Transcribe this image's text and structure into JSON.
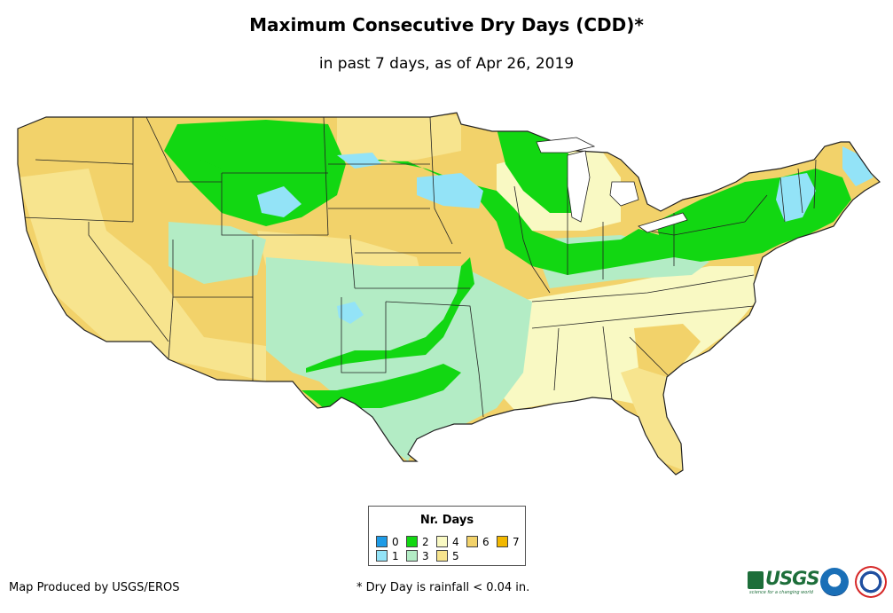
{
  "title": "Maximum Consecutive Dry Days (CDD)*",
  "subtitle": "in past 7 days, as of Apr 26, 2019",
  "legend": {
    "title": "Nr. Days",
    "items": [
      {
        "label": "0",
        "color": "#1e9be6"
      },
      {
        "label": "1",
        "color": "#93e3f7"
      },
      {
        "label": "2",
        "color": "#12d712"
      },
      {
        "label": "3",
        "color": "#b3ecc5"
      },
      {
        "label": "4",
        "color": "#f9f9c3"
      },
      {
        "label": "5",
        "color": "#f7e48e"
      },
      {
        "label": "6",
        "color": "#f2d26a"
      },
      {
        "label": "7",
        "color": "#f2b800"
      }
    ]
  },
  "credit": "Map Produced by USGS/EROS",
  "footnote": "* Dry Day is rainfall < 0.04 in.",
  "logos": {
    "usgs_text": "USGS",
    "usgs_tagline": "science for a changing world"
  }
}
